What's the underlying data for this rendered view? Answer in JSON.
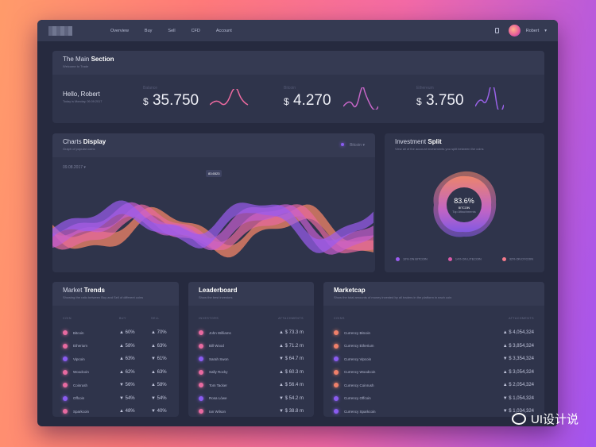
{
  "nav": {
    "links": [
      "Overview",
      "Buy",
      "Sell",
      "CFD",
      "Account"
    ],
    "user": "Robert"
  },
  "main": {
    "title_light": "The Main",
    "title_bold": "Section",
    "subtitle": "Welcome to Trade",
    "greeting": "Hello, Robert",
    "date": "Today is Monday, 09.09.2017",
    "stats": [
      {
        "label": "Balance",
        "currency": "$",
        "value": "35.750"
      },
      {
        "label": "Bitcoin",
        "currency": "$",
        "value": "4.270"
      },
      {
        "label": "Ethereum",
        "currency": "$",
        "value": "3.750"
      }
    ]
  },
  "charts": {
    "title_light": "Charts",
    "title_bold": "Display",
    "subtitle": "Graph of popular coins",
    "coin": "Bitcoin",
    "date": "09.08.2017",
    "tooltip": "83.6523"
  },
  "invest": {
    "title_light": "Investment",
    "title_bold": "Split",
    "subtitle": "View all of the account investments you split between the coins",
    "percent": "83.6%",
    "coin": "BITCOIN",
    "caption": "Top Attachments",
    "legend": [
      {
        "text": "10% ON BITCOIN",
        "color": "#9b5cf0"
      },
      {
        "text": "14% ON LITECOIN",
        "color": "#d85aa8"
      },
      {
        "text": "32% ON DYCOIN",
        "color": "#f47a8a"
      }
    ]
  },
  "trends": {
    "title_light": "Market",
    "title_bold": "Trends",
    "subtitle": "Showing the ratio between Buy and Sell of different coins",
    "headers": [
      "COIN",
      "BUY",
      "SELL"
    ],
    "rows": [
      [
        "Bitcoin",
        "▲ 60%",
        "▲ 70%"
      ],
      [
        "Etherium",
        "▲ 58%",
        "▲ 63%"
      ],
      [
        "Vipcoin",
        "▲ 63%",
        "▼ 61%"
      ],
      [
        "Woodcoin",
        "▲ 62%",
        "▲ 63%"
      ],
      [
        "Coinrush",
        "▼ 56%",
        "▲ 58%"
      ],
      [
        "Offcoin",
        "▼ 54%",
        "▼ 54%"
      ],
      [
        "Sparkcoin",
        "▲ 48%",
        "▼ 40%"
      ]
    ]
  },
  "leader": {
    "title": "Leaderboard",
    "subtitle": "Show the best investors",
    "headers": [
      "INVESTORS",
      "ATTACHMENTS"
    ],
    "rows": [
      [
        "John Williams",
        "▲ $ 73.3 m"
      ],
      [
        "Bill Wood",
        "▲ $ 71.2 m"
      ],
      [
        "Sarah Swon",
        "▼ $ 64.7 m"
      ],
      [
        "Sally Rocky",
        "▲ $ 60.3 m"
      ],
      [
        "Tom Tacker",
        "▲ $ 56.4 m"
      ],
      [
        "Rosa Lówe",
        "▼ $ 54.2 m"
      ],
      [
        "Ian Wilson",
        "▼ $ 38.8 m"
      ]
    ]
  },
  "mcap": {
    "title": "Marketcap",
    "subtitle": "Show the total amounts of money invested by all traders in the platform in each coin",
    "headers": [
      "COINS",
      "ATTACHMENTS"
    ],
    "rows": [
      [
        "Currency Bitcoin",
        "▲ $ 4,054,324"
      ],
      [
        "Currency Etherium",
        "▲ $ 3,854,324"
      ],
      [
        "Currency Vipcoin",
        "▼ $ 3,354,324"
      ],
      [
        "Currency Woodcoin",
        "▲ $ 3,054,324"
      ],
      [
        "Currency Coinrush",
        "▲ $ 2,054,324"
      ],
      [
        "Currency Offcoin",
        "▼ $ 1,054,324"
      ],
      [
        "Currency Sparkcoin",
        "▼ $ 1,034,324"
      ]
    ]
  },
  "dot_colors": [
    "#e86aa0",
    "#e86aa0",
    "#8a5cf0",
    "#e86aa0",
    "#e86aa0",
    "#8a5cf0",
    "#e86aa0"
  ],
  "mcap_colors": [
    "#f0806a",
    "#f0806a",
    "#8a5cf0",
    "#f0806a",
    "#f0806a",
    "#8a5cf0",
    "#8a5cf0"
  ],
  "watermark": "UI设计说"
}
